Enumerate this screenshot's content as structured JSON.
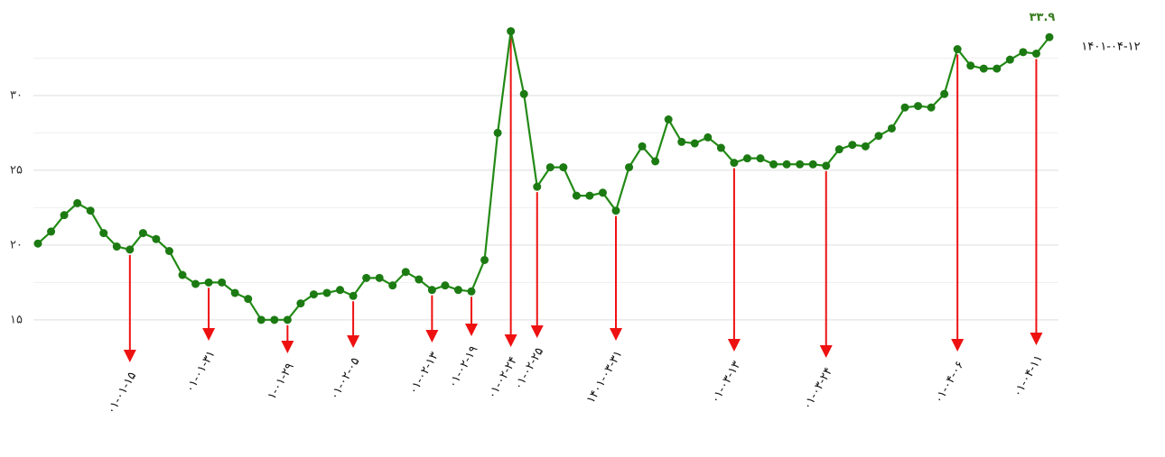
{
  "chart_data": {
    "type": "line",
    "categories": [
      null,
      null,
      null,
      null,
      null,
      null,
      null,
      "۰۱-۰۱-۱۵",
      null,
      null,
      null,
      null,
      null,
      "۰۱-۰۱-۳۱",
      null,
      null,
      null,
      null,
      null,
      "۱-۰۱-۲۹",
      null,
      null,
      null,
      null,
      "۰۱-۰۲-۰۵",
      null,
      null,
      null,
      null,
      null,
      "۰۱-۰۲-۱۳",
      null,
      null,
      "۰۱-۰۲-۱۹",
      null,
      null,
      "۰۱-۰۲-۲۴",
      null,
      "۰۱-۰۲-۲۵",
      null,
      null,
      null,
      null,
      null,
      "۱۴۰۱-۰۳-۳۱",
      null,
      null,
      null,
      null,
      null,
      null,
      null,
      null,
      "۰۱-۰۳-۱۳",
      null,
      null,
      null,
      null,
      null,
      null,
      "۰۱-۰۳-۲۴",
      null,
      null,
      null,
      null,
      null,
      null,
      null,
      null,
      null,
      "۰۱-۰۴-۰۶",
      null,
      null,
      null,
      null,
      null,
      "۰۱-۰۴-۱۱",
      "۱۴۰۱-۰۴-۱۲"
    ],
    "series": [
      {
        "color": "#238a16",
        "values": [
          20.1,
          20.9,
          22.0,
          22.8,
          22.3,
          20.8,
          19.9,
          19.7,
          20.8,
          20.4,
          19.6,
          18.0,
          17.4,
          17.5,
          17.5,
          16.8,
          16.4,
          15.0,
          15.0,
          15.0,
          16.1,
          16.7,
          16.8,
          17.0,
          16.6,
          17.8,
          17.8,
          17.3,
          18.2,
          17.7,
          17.0,
          17.3,
          17.0,
          16.9,
          19.0,
          27.5,
          34.3,
          30.1,
          23.9,
          25.2,
          25.2,
          23.3,
          23.3,
          23.5,
          22.3,
          25.2,
          26.6,
          25.6,
          28.4,
          26.9,
          26.8,
          27.2,
          26.5,
          25.5,
          25.8,
          25.8,
          25.4,
          25.4,
          25.4,
          25.4,
          25.3,
          26.4,
          26.7,
          26.6,
          27.3,
          27.8,
          29.2,
          29.3,
          29.2,
          30.1,
          33.1,
          32.0,
          31.8,
          31.8,
          32.4,
          32.9,
          32.8,
          33.9
        ],
        "value_labels": [
          null,
          null,
          null,
          null,
          null,
          null,
          null,
          null,
          null,
          null,
          null,
          null,
          null,
          null,
          null,
          null,
          null,
          null,
          null,
          null,
          null,
          null,
          null,
          null,
          null,
          null,
          null,
          null,
          null,
          null,
          null,
          null,
          null,
          null,
          null,
          null,
          null,
          null,
          null,
          null,
          null,
          null,
          null,
          null,
          null,
          null,
          null,
          null,
          null,
          null,
          null,
          null,
          null,
          null,
          null,
          null,
          null,
          null,
          null,
          null,
          null,
          null,
          null,
          null,
          null,
          null,
          null,
          null,
          null,
          null,
          null,
          null,
          null,
          null,
          null,
          null,
          null,
          "۳۳.۹"
        ]
      }
    ],
    "arrow_color": "#ee1111",
    "ylim": [
      13,
      35
    ],
    "yticks": [
      {
        "value": 15,
        "label": "۱۵"
      },
      {
        "value": 20,
        "label": "۲۰"
      },
      {
        "value": 25,
        "label": "۲۵"
      },
      {
        "value": 30,
        "label": "۳۰"
      }
    ],
    "minor_yticks": [
      17.5,
      22.5,
      27.5,
      32.5
    ],
    "grid": true
  }
}
